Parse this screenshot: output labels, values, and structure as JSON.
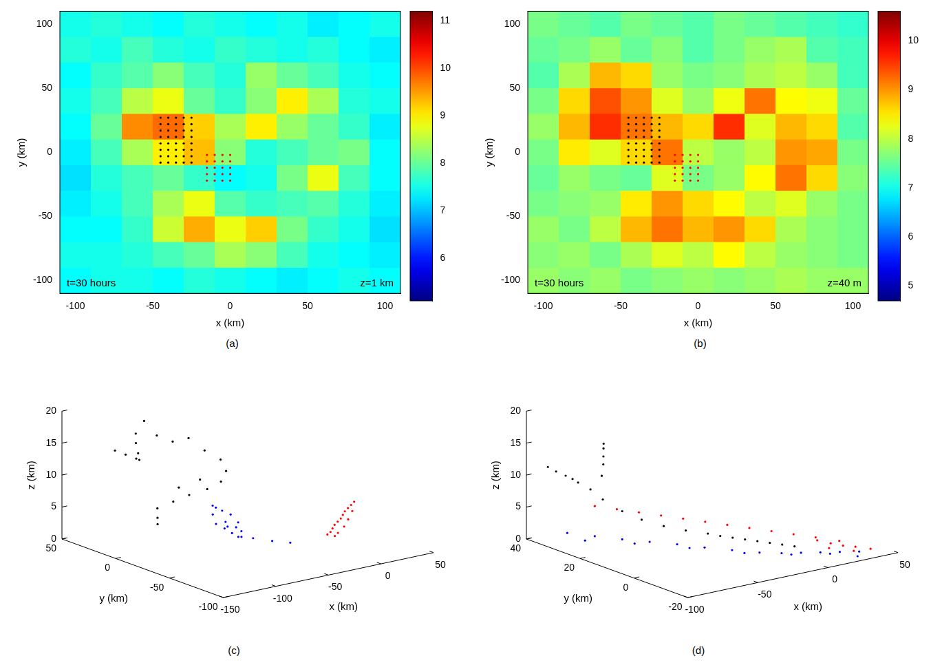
{
  "chart_data": [
    {
      "type": "heatmap",
      "caption": "(a)",
      "annotations": [
        "t=30 hours",
        "z=1 km"
      ],
      "x_label": "x (km)",
      "y_label": "y (km)",
      "xlim": [
        -110,
        110
      ],
      "ylim": [
        -110,
        110
      ],
      "xticks": [
        -100,
        -50,
        0,
        50,
        100
      ],
      "yticks": [
        -100,
        -50,
        0,
        50,
        100
      ],
      "cells": {
        "x": [
          -100,
          -80,
          -60,
          -40,
          -20,
          0,
          20,
          40,
          60,
          80,
          100
        ],
        "y": [
          100,
          80,
          60,
          40,
          20,
          0,
          -20,
          -40,
          -60,
          -80,
          -100
        ],
        "values": [
          [
            7.5,
            7.6,
            7.5,
            7.4,
            7.6,
            7.5,
            7.4,
            7.5,
            7.3,
            7.4,
            7.5
          ],
          [
            7.6,
            7.5,
            7.8,
            7.6,
            7.5,
            7.7,
            7.6,
            7.5,
            7.6,
            7.4,
            7.3
          ],
          [
            7.4,
            7.7,
            7.9,
            8.2,
            7.8,
            7.6,
            8.3,
            8.0,
            7.8,
            7.5,
            7.4
          ],
          [
            7.5,
            7.8,
            8.5,
            8.8,
            8.0,
            7.7,
            8.2,
            9.0,
            8.4,
            7.6,
            7.5
          ],
          [
            7.4,
            8.0,
            9.6,
            9.8,
            9.2,
            8.4,
            9.0,
            8.3,
            8.0,
            7.7,
            7.3
          ],
          [
            7.3,
            7.8,
            8.4,
            9.0,
            9.3,
            8.2,
            7.6,
            7.8,
            8.0,
            8.1,
            7.4
          ],
          [
            7.2,
            7.6,
            7.8,
            8.0,
            7.7,
            7.4,
            7.5,
            8.1,
            8.8,
            7.8,
            7.4
          ],
          [
            7.3,
            7.5,
            7.8,
            8.4,
            8.8,
            7.9,
            7.7,
            7.8,
            7.9,
            7.6,
            7.3
          ],
          [
            7.4,
            7.4,
            7.7,
            8.6,
            9.4,
            8.8,
            9.2,
            8.1,
            7.7,
            7.5,
            7.2
          ],
          [
            7.5,
            7.5,
            7.6,
            7.8,
            8.0,
            8.4,
            8.2,
            7.8,
            7.5,
            7.4,
            7.3
          ],
          [
            7.4,
            7.5,
            7.5,
            7.4,
            7.6,
            7.5,
            7.4,
            7.3,
            7.4,
            7.5,
            7.4
          ]
        ]
      },
      "colorbar": {
        "range": [
          5.1,
          11.2
        ],
        "ticks": [
          6,
          7,
          8,
          9,
          10,
          11
        ]
      },
      "series": [
        {
          "color": "#000000",
          "marker": "dot",
          "grid_x": [
            -45,
            -40,
            -35,
            -30,
            -25
          ],
          "grid_y": [
            -8,
            -3,
            2,
            7,
            12,
            17,
            22,
            27
          ]
        },
        {
          "color": "#ff0000",
          "marker": "dot",
          "grid_x": [
            -15,
            -10,
            -5,
            0
          ],
          "grid_y": [
            -22,
            -17,
            -12,
            -7,
            -2
          ]
        }
      ]
    },
    {
      "type": "heatmap",
      "caption": "(b)",
      "annotations": [
        "t=30 hours",
        "z=40 m"
      ],
      "x_label": "x (km)",
      "y_label": "y (km)",
      "xlim": [
        -110,
        110
      ],
      "ylim": [
        -110,
        110
      ],
      "xticks": [
        -100,
        -50,
        0,
        50,
        100
      ],
      "yticks": [
        -100,
        -50,
        0,
        50,
        100
      ],
      "cells": {
        "x": [
          -100,
          -80,
          -60,
          -40,
          -20,
          0,
          20,
          40,
          60,
          80,
          100
        ],
        "y": [
          100,
          80,
          60,
          40,
          20,
          0,
          -20,
          -40,
          -60,
          -80,
          -100
        ],
        "values": [
          [
            7.6,
            7.5,
            7.4,
            7.6,
            7.5,
            7.4,
            7.6,
            7.5,
            7.4,
            7.3,
            7.2
          ],
          [
            7.5,
            7.6,
            7.8,
            7.5,
            7.7,
            7.4,
            7.6,
            7.8,
            7.9,
            7.4,
            7.3
          ],
          [
            7.4,
            7.9,
            8.8,
            8.6,
            7.8,
            7.6,
            7.7,
            7.9,
            8.0,
            7.8,
            7.3
          ],
          [
            7.6,
            8.6,
            9.4,
            9.0,
            8.2,
            7.8,
            8.3,
            9.2,
            8.4,
            8.3,
            7.5
          ],
          [
            7.8,
            8.8,
            9.6,
            9.2,
            8.8,
            8.6,
            9.6,
            8.2,
            8.8,
            8.6,
            7.4
          ],
          [
            7.6,
            8.5,
            8.2,
            8.6,
            9.2,
            8.0,
            7.8,
            8.0,
            9.0,
            8.9,
            7.6
          ],
          [
            7.5,
            7.8,
            7.6,
            7.5,
            8.2,
            7.6,
            7.8,
            8.4,
            9.2,
            8.6,
            7.7
          ],
          [
            7.6,
            7.7,
            7.8,
            8.5,
            9.0,
            8.6,
            8.4,
            8.0,
            8.2,
            7.8,
            7.6
          ],
          [
            7.8,
            7.6,
            8.0,
            8.8,
            9.2,
            8.8,
            9.0,
            8.6,
            7.9,
            7.7,
            7.6
          ],
          [
            7.7,
            7.8,
            7.6,
            7.9,
            8.2,
            8.0,
            8.4,
            8.0,
            7.8,
            7.7,
            7.6
          ],
          [
            7.8,
            7.7,
            7.8,
            7.6,
            7.7,
            7.8,
            7.7,
            7.8,
            7.9,
            7.8,
            7.8
          ]
        ]
      },
      "colorbar": {
        "range": [
          4.7,
          10.6
        ],
        "ticks": [
          5,
          6,
          7,
          8,
          9,
          10
        ]
      },
      "series": [
        {
          "color": "#000000",
          "marker": "dot",
          "grid_x": [
            -45,
            -40,
            -35,
            -30,
            -25
          ],
          "grid_y": [
            -8,
            -3,
            2,
            7,
            12,
            17,
            22,
            27
          ]
        },
        {
          "color": "#ff0000",
          "marker": "dot",
          "grid_x": [
            -15,
            -10,
            -5,
            0
          ],
          "grid_y": [
            -22,
            -17,
            -12,
            -7,
            -2
          ]
        }
      ]
    },
    {
      "type": "scatter3d",
      "caption": "(c)",
      "x_label": "x (km)",
      "y_label": "y (km)",
      "z_label": "z (km)",
      "xlim": [
        -150,
        50
      ],
      "ylim": [
        -100,
        50
      ],
      "zlim": [
        0,
        20
      ],
      "xticks": [
        -150,
        -100,
        -50,
        0,
        50
      ],
      "yticks": [
        -100,
        -50,
        0,
        50
      ],
      "zticks": [
        0,
        5,
        10,
        15,
        20
      ],
      "series": [
        {
          "color": "#000000",
          "marker": "dot",
          "x": [
            -120,
            -115,
            -110,
            -105,
            -100,
            -95,
            -90,
            -80,
            -70,
            -60,
            -50,
            -45,
            -40,
            -45,
            -55,
            -65,
            -75,
            -85,
            -95,
            -100,
            -105,
            -90,
            -80
          ],
          "y": [
            30,
            25,
            20,
            22,
            28,
            35,
            40,
            42,
            40,
            35,
            30,
            20,
            10,
            0,
            -5,
            -2,
            5,
            10,
            15,
            10,
            5,
            0,
            -10
          ],
          "z": [
            14,
            13.5,
            13,
            12.5,
            13,
            14,
            15,
            16.5,
            14,
            13,
            13.5,
            12,
            11,
            10,
            9,
            8,
            7,
            6,
            5,
            4,
            3.5,
            9,
            10.5
          ]
        },
        {
          "color": "#0000ff",
          "marker": "dot",
          "x": [
            -75,
            -72,
            -68,
            -64,
            -60,
            -56,
            -54,
            -56,
            -60,
            -64,
            -68,
            -72,
            -66,
            -62,
            -58,
            -50,
            -40,
            -30
          ],
          "y": [
            -20,
            -14,
            -10,
            -9,
            -11,
            -15,
            -20,
            -25,
            -29,
            -30,
            -28,
            -25,
            -20,
            -18,
            -22,
            -30,
            -38,
            -45
          ],
          "z": [
            4,
            5,
            6,
            5.5,
            5,
            4.5,
            3.5,
            2.5,
            2,
            2.2,
            2.8,
            3.5,
            4,
            3,
            3,
            1.5,
            1.2,
            1
          ]
        },
        {
          "color": "#ff0000",
          "marker": "dot",
          "x": [
            -10,
            -5,
            0,
            5,
            10,
            15,
            20,
            25,
            30,
            35,
            40,
            30,
            20,
            10,
            0,
            -5
          ],
          "y": [
            -60,
            -58,
            -55,
            -52,
            -50,
            -48,
            -45,
            -42,
            -40,
            -38,
            -36,
            -44,
            -50,
            -56,
            -60,
            -62
          ],
          "z": [
            2.5,
            2.6,
            2.8,
            3.0,
            3.2,
            3.4,
            3.6,
            3.8,
            4.0,
            4.2,
            4.4,
            3.8,
            3.2,
            2.8,
            2.4,
            2.2
          ]
        }
      ]
    },
    {
      "type": "scatter3d",
      "caption": "(d)",
      "x_label": "x (km)",
      "y_label": "y (km)",
      "z_label": "z (km)",
      "xlim": [
        -100,
        50
      ],
      "ylim": [
        -20,
        40
      ],
      "zlim": [
        0,
        20
      ],
      "xticks": [
        -100,
        -50,
        0,
        50
      ],
      "yticks": [
        -20,
        0,
        20,
        40
      ],
      "zticks": [
        0,
        5,
        10,
        15,
        20
      ],
      "series": [
        {
          "color": "#000000",
          "marker": "dot",
          "x": [
            5,
            0,
            -5,
            -10,
            -15,
            -20,
            -25,
            -30,
            -40,
            -50,
            -60,
            -70,
            -80,
            -85,
            -90,
            -92,
            -95,
            -98,
            -100,
            -75,
            -72,
            -70,
            -68,
            -66
          ],
          "y": [
            -5,
            -3,
            -1,
            1,
            3,
            5,
            7,
            9,
            12,
            15,
            18,
            20,
            22,
            24,
            26,
            27,
            28,
            30,
            32,
            25,
            26,
            27,
            28,
            29
          ],
          "z": [
            0.8,
            1,
            1.2,
            1.4,
            1.6,
            1.8,
            2,
            2.3,
            2.8,
            3.5,
            4.5,
            6,
            8,
            9.5,
            10.5,
            11,
            11.5,
            12,
            12.5,
            11,
            12.5,
            13.5,
            14.5,
            15
          ]
        },
        {
          "color": "#0000ff",
          "marker": "dot",
          "x": [
            -90,
            -80,
            -70,
            -60,
            -50,
            -40,
            -30,
            -20,
            -10,
            0,
            10,
            20,
            30,
            -85,
            -65,
            -45,
            -25,
            -5,
            15,
            25
          ],
          "y": [
            30,
            25,
            20,
            15,
            10,
            5,
            0,
            -5,
            -8,
            -10,
            -12,
            -14,
            -16,
            26,
            18,
            8,
            -2,
            -9,
            -13,
            -18
          ],
          "z": [
            2,
            1.8,
            1.6,
            1.5,
            1.4,
            1.2,
            1.1,
            1,
            0.9,
            0.8,
            0.7,
            0.6,
            0.5,
            1.2,
            1,
            0.9,
            0.7,
            0.6,
            0.4,
            0.3
          ]
        },
        {
          "color": "#ff0000",
          "marker": "dot",
          "x": [
            -80,
            -70,
            -60,
            -50,
            -40,
            -30,
            -20,
            -10,
            0,
            10,
            20,
            25,
            30,
            35,
            40,
            30,
            20,
            25,
            35
          ],
          "y": [
            25,
            22,
            19,
            16,
            13,
            10,
            7,
            4,
            1,
            -2,
            -5,
            -8,
            -10,
            -12,
            -15,
            -14,
            -10,
            -3,
            -6
          ],
          "z": [
            6.5,
            6,
            5.5,
            5,
            4.5,
            4,
            3.5,
            3,
            2.5,
            2,
            1.5,
            0.8,
            0.5,
            0.4,
            0.3,
            0.3,
            0.6,
            0.5,
            0.4
          ]
        }
      ]
    }
  ]
}
